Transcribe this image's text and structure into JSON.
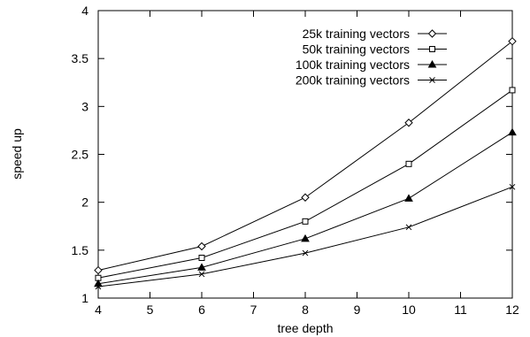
{
  "chart_data": {
    "type": "line",
    "title": "",
    "xlabel": "tree depth",
    "ylabel": "speed up",
    "xlim": [
      4,
      12
    ],
    "ylim": [
      1,
      4
    ],
    "xticks": [
      4,
      5,
      6,
      7,
      8,
      9,
      10,
      11,
      12
    ],
    "yticks": [
      1,
      1.5,
      2,
      2.5,
      3,
      3.5,
      4
    ],
    "grid": false,
    "legend_position": "top-right",
    "x": [
      4,
      6,
      8,
      10,
      12
    ],
    "series": [
      {
        "name": "25k training vectors",
        "marker": "diamond",
        "values": [
          1.29,
          1.54,
          2.05,
          2.83,
          3.68
        ]
      },
      {
        "name": "50k training vectors",
        "marker": "square",
        "values": [
          1.21,
          1.42,
          1.8,
          2.4,
          3.17
        ]
      },
      {
        "name": "100k training vectors",
        "marker": "triangle",
        "values": [
          1.15,
          1.32,
          1.62,
          2.04,
          2.73
        ]
      },
      {
        "name": "200k training vectors",
        "marker": "x",
        "values": [
          1.12,
          1.25,
          1.47,
          1.74,
          2.16
        ]
      }
    ]
  }
}
